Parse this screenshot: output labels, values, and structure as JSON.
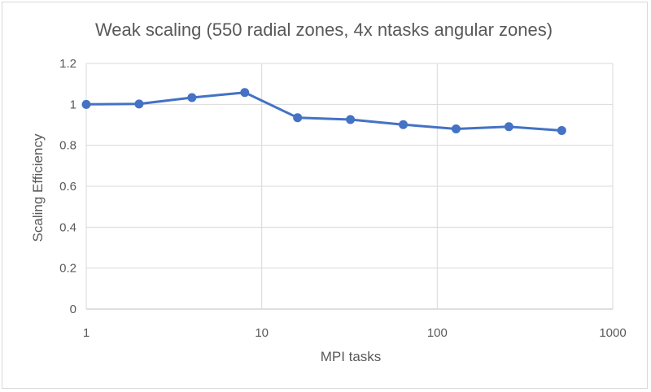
{
  "chart_data": {
    "type": "line",
    "title": "Weak scaling (550 radial zones, 4x ntasks angular zones)",
    "xlabel": "MPI tasks",
    "ylabel": "Scaling Efficiency",
    "x_scale": "log",
    "xlim": [
      1,
      1000
    ],
    "ylim": [
      0,
      1.2
    ],
    "x_ticks": [
      1,
      10,
      100,
      1000
    ],
    "x_tick_labels": [
      "1",
      "10",
      "100",
      "1000"
    ],
    "y_ticks": [
      0,
      0.2,
      0.4,
      0.6,
      0.8,
      1,
      1.2
    ],
    "y_tick_labels": [
      "0",
      "0.2",
      "0.4",
      "0.6",
      "0.8",
      "1",
      "1.2"
    ],
    "grid": true,
    "legend": "none",
    "series": [
      {
        "color": "#4472c4",
        "marker": "circle",
        "x": [
          1,
          2,
          4,
          8,
          16,
          32,
          64,
          128,
          256,
          512
        ],
        "y": [
          1.0,
          1.002,
          1.033,
          1.058,
          0.935,
          0.926,
          0.901,
          0.88,
          0.891,
          0.872
        ]
      }
    ]
  }
}
